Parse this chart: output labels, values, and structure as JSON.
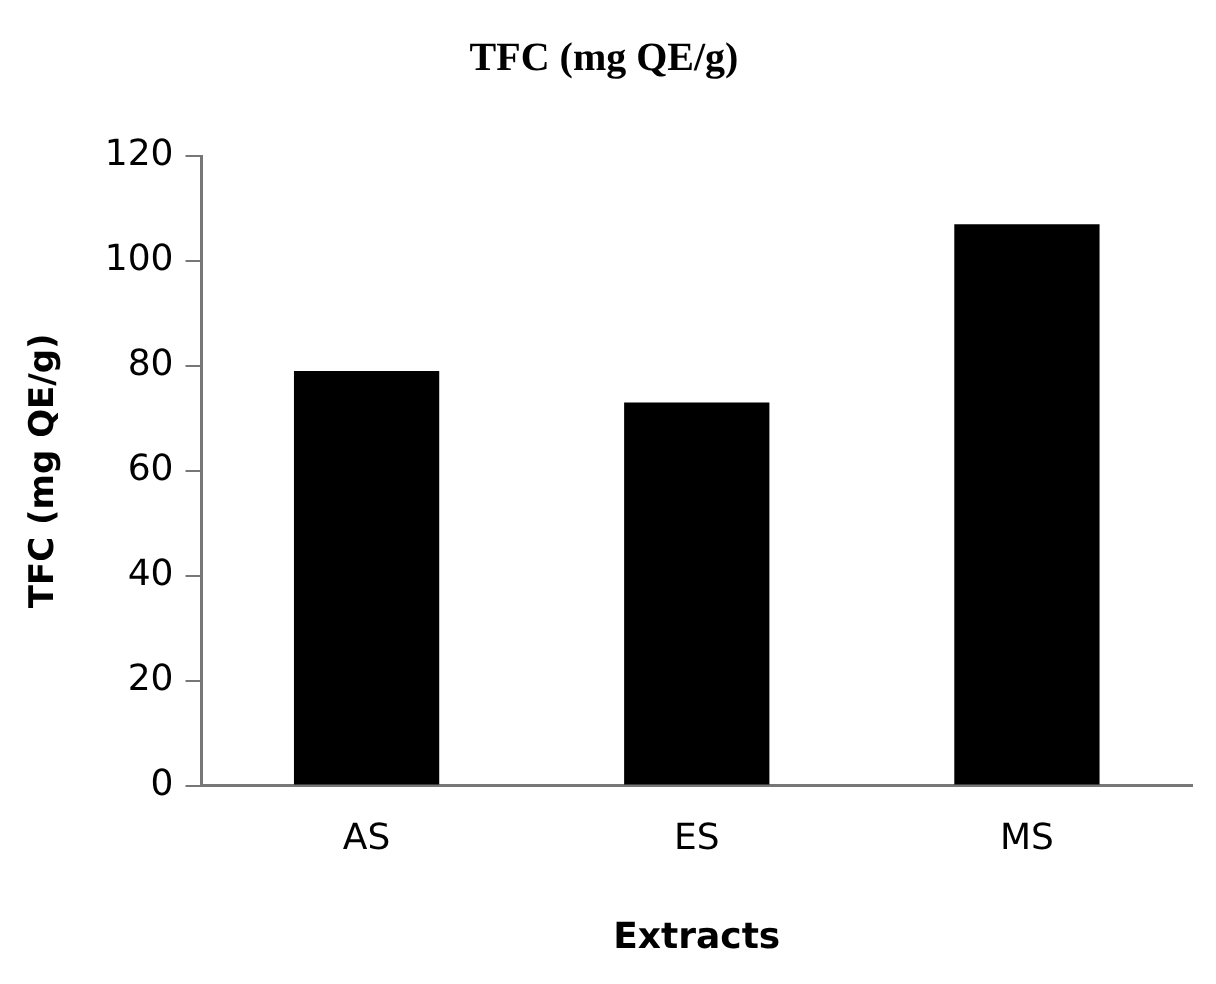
{
  "chart_data": {
    "type": "bar",
    "title": "TFC (mg QE/g)",
    "xlabel": "Extracts",
    "ylabel": "TFC (mg QE/g)",
    "categories": [
      "AS",
      "ES",
      "MS"
    ],
    "values": [
      79,
      73,
      107
    ],
    "color": "#000000",
    "ylim": [
      0,
      120
    ],
    "yticks": [
      0,
      20,
      40,
      60,
      80,
      100,
      120
    ],
    "grid": false,
    "legend": false
  }
}
